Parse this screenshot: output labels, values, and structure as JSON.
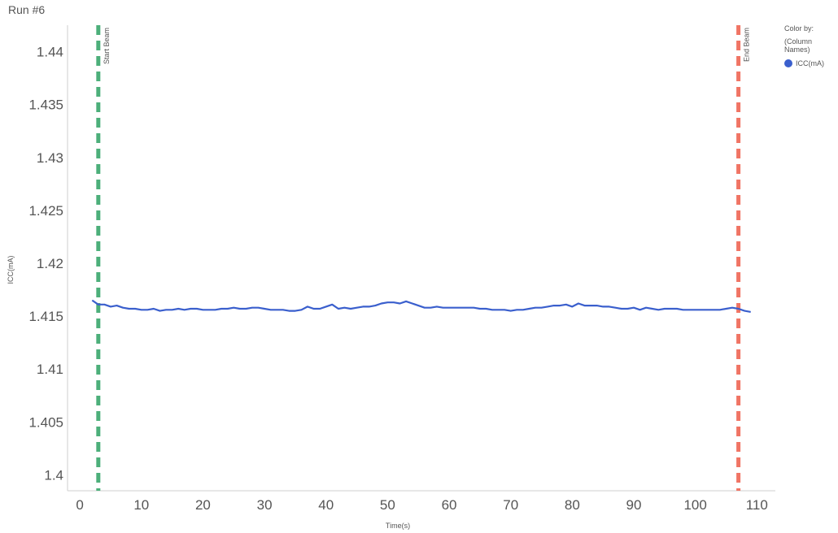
{
  "window": {
    "title": "Run #6"
  },
  "legend": {
    "heading": "Color by:",
    "subheading": "(Column Names)",
    "items": [
      {
        "label": "ICC(mA)",
        "color": "#3a5fcd"
      }
    ]
  },
  "chart_data": {
    "type": "line",
    "title": "Run #6",
    "xlabel": "Time(s)",
    "ylabel": "ICC(mA)",
    "xlim": [
      -2,
      113
    ],
    "ylim": [
      1.3985,
      1.4425
    ],
    "xticks": [
      0,
      10,
      20,
      30,
      40,
      50,
      60,
      70,
      80,
      90,
      100,
      110
    ],
    "yticks": [
      1.4,
      1.405,
      1.41,
      1.415,
      1.42,
      1.425,
      1.43,
      1.435,
      1.44
    ],
    "ytick_labels": [
      "1.4",
      "1.405",
      "1.41",
      "1.415",
      "1.42",
      "1.425",
      "1.43",
      "1.435",
      "1.44"
    ],
    "grid": false,
    "legend_position": "right",
    "series": [
      {
        "name": "ICC(mA)",
        "color": "#3a5fcd",
        "x": [
          2,
          3,
          4,
          5,
          6,
          7,
          8,
          9,
          10,
          11,
          12,
          13,
          14,
          15,
          16,
          17,
          18,
          19,
          20,
          21,
          22,
          23,
          24,
          25,
          26,
          27,
          28,
          29,
          30,
          31,
          32,
          33,
          34,
          35,
          36,
          37,
          38,
          39,
          40,
          41,
          42,
          43,
          44,
          45,
          46,
          47,
          48,
          49,
          50,
          51,
          52,
          53,
          54,
          55,
          56,
          57,
          58,
          59,
          60,
          61,
          62,
          63,
          64,
          65,
          66,
          67,
          68,
          69,
          70,
          71,
          72,
          73,
          74,
          75,
          76,
          77,
          78,
          79,
          80,
          81,
          82,
          83,
          84,
          85,
          86,
          87,
          88,
          89,
          90,
          91,
          92,
          93,
          94,
          95,
          96,
          97,
          98,
          99,
          100,
          101,
          102,
          103,
          104,
          105,
          106,
          107,
          108,
          109
        ],
        "y": [
          1.4165,
          1.4161,
          1.4161,
          1.4159,
          1.416,
          1.4158,
          1.4157,
          1.4157,
          1.4156,
          1.4156,
          1.4157,
          1.4155,
          1.4156,
          1.4156,
          1.4157,
          1.4156,
          1.4157,
          1.4157,
          1.4156,
          1.4156,
          1.4156,
          1.4157,
          1.4157,
          1.4158,
          1.4157,
          1.4157,
          1.4158,
          1.4158,
          1.4157,
          1.4156,
          1.4156,
          1.4156,
          1.4155,
          1.4155,
          1.4156,
          1.4159,
          1.4157,
          1.4157,
          1.4159,
          1.4161,
          1.4157,
          1.4158,
          1.4157,
          1.4158,
          1.4159,
          1.4159,
          1.416,
          1.4162,
          1.4163,
          1.4163,
          1.4162,
          1.4164,
          1.4162,
          1.416,
          1.4158,
          1.4158,
          1.4159,
          1.4158,
          1.4158,
          1.4158,
          1.4158,
          1.4158,
          1.4158,
          1.4157,
          1.4157,
          1.4156,
          1.4156,
          1.4156,
          1.4155,
          1.4156,
          1.4156,
          1.4157,
          1.4158,
          1.4158,
          1.4159,
          1.416,
          1.416,
          1.4161,
          1.4159,
          1.4162,
          1.416,
          1.416,
          1.416,
          1.4159,
          1.4159,
          1.4158,
          1.4157,
          1.4157,
          1.4158,
          1.4156,
          1.4158,
          1.4157,
          1.4156,
          1.4157,
          1.4157,
          1.4157,
          1.4156,
          1.4156,
          1.4156,
          1.4156,
          1.4156,
          1.4156,
          1.4156,
          1.4157,
          1.4158,
          1.4157,
          1.4155,
          1.4154
        ]
      }
    ],
    "annotations": [
      {
        "label": "Start Beam",
        "x": 3,
        "color": "#4caf7a",
        "style": "dashed-vertical"
      },
      {
        "label": "End Beam",
        "x": 107,
        "color": "#f07464",
        "style": "dashed-vertical"
      }
    ]
  }
}
